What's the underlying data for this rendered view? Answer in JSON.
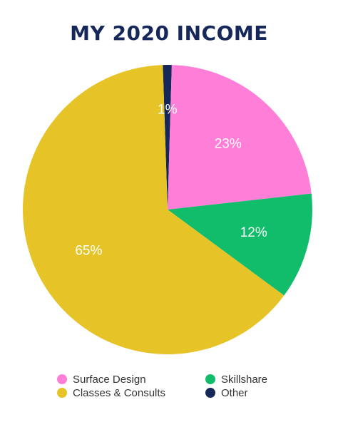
{
  "chart_data": {
    "type": "pie",
    "title": "MY 2020 INCOME",
    "slices": [
      {
        "name": "Surface Design",
        "value": 23,
        "label": "23%",
        "color": "#ff7fd8"
      },
      {
        "name": "Skillshare",
        "value": 12,
        "label": "12%",
        "color": "#11bd6a"
      },
      {
        "name": "Classes & Consults",
        "value": 65,
        "label": "65%",
        "color": "#e6c427"
      },
      {
        "name": "Other",
        "value": 1,
        "label": "1%",
        "color": "#16285a"
      }
    ],
    "legend": {
      "placement": "bottom",
      "items": [
        {
          "name": "Surface Design",
          "color": "#ff7fd8"
        },
        {
          "name": "Skillshare",
          "color": "#11bd6a"
        },
        {
          "name": "Classes & Consults",
          "color": "#e6c427"
        },
        {
          "name": "Other",
          "color": "#16285a"
        }
      ]
    }
  }
}
